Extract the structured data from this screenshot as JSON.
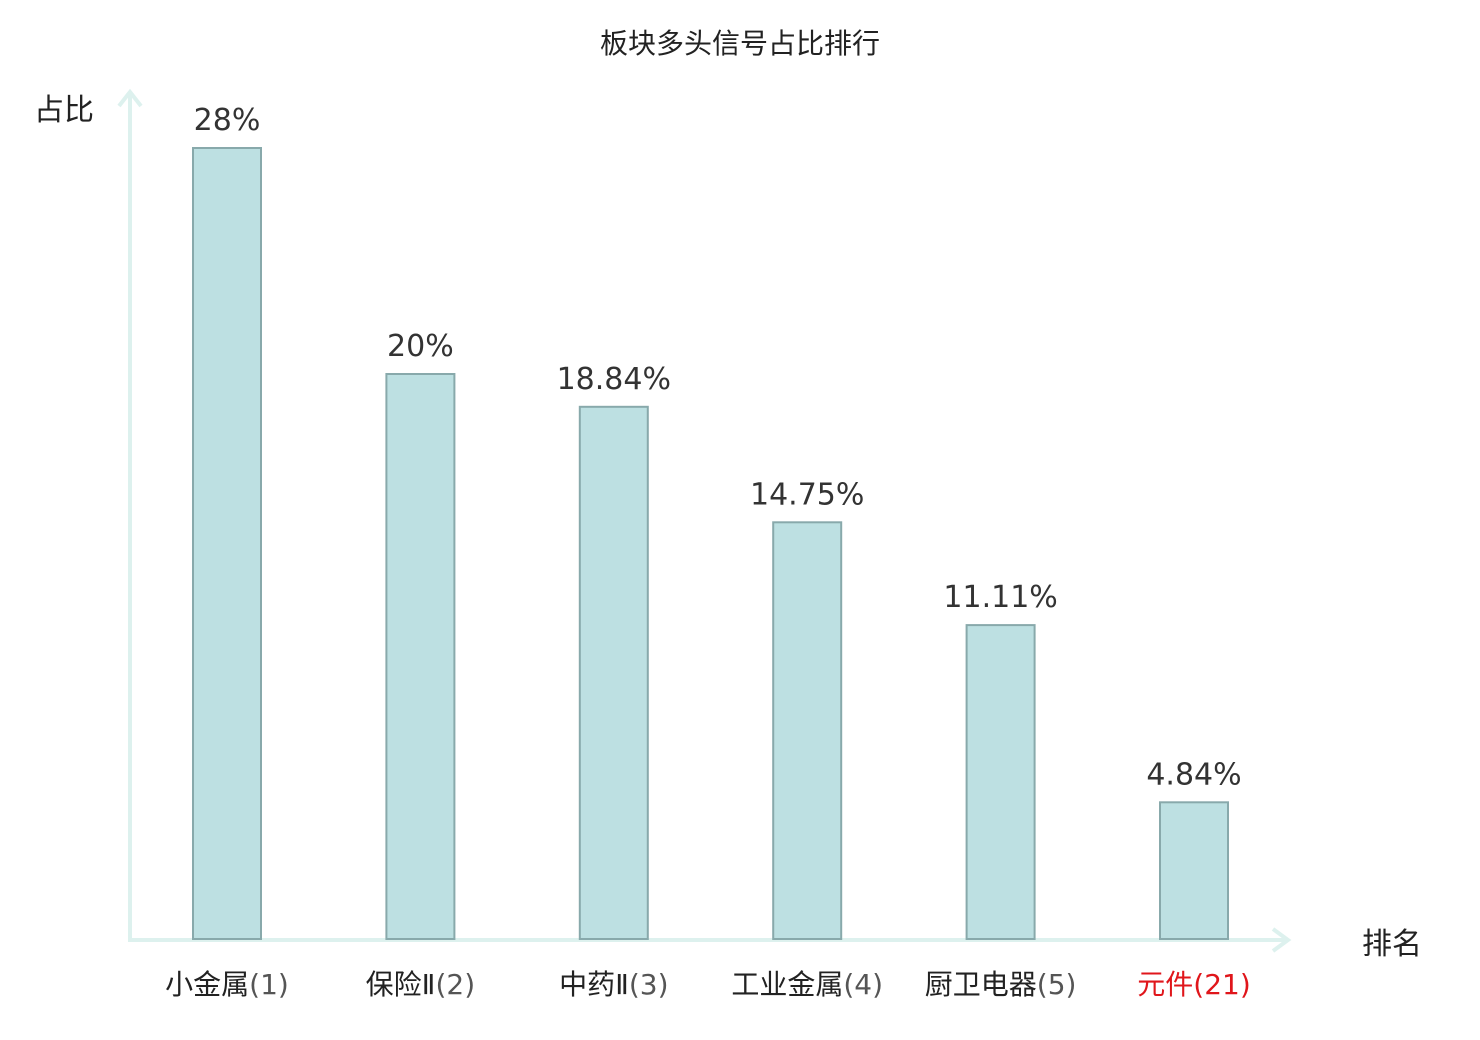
{
  "chart_data": {
    "type": "bar",
    "title": "板块多头信号占比排行",
    "xlabel": "排名",
    "ylabel": "占比",
    "categories": [
      "小金属(1)",
      "保险Ⅱ(2)",
      "中药Ⅱ(3)",
      "工业金属(4)",
      "厨卫电器(5)",
      "元件(21)"
    ],
    "category_names": [
      "小金属",
      "保险Ⅱ",
      "中药Ⅱ",
      "工业金属",
      "厨卫电器",
      "元件"
    ],
    "ranks": [
      "(1)",
      "(2)",
      "(3)",
      "(4)",
      "(5)",
      "(21)"
    ],
    "values": [
      28,
      20,
      18.84,
      14.75,
      11.11,
      4.84
    ],
    "value_labels": [
      "28%",
      "20%",
      "18.84%",
      "14.75%",
      "11.11%",
      "4.84%"
    ],
    "highlight_index": 5,
    "ylim": [
      0,
      28
    ],
    "grid": false,
    "colors": {
      "bar_fill": "#bde0e2",
      "bar_stroke": "#88a9ab",
      "axis": "#ddf1ee",
      "text": "#222222",
      "value_text": "#333333",
      "rank_text": "#555555",
      "highlight": "#e0161b"
    }
  }
}
